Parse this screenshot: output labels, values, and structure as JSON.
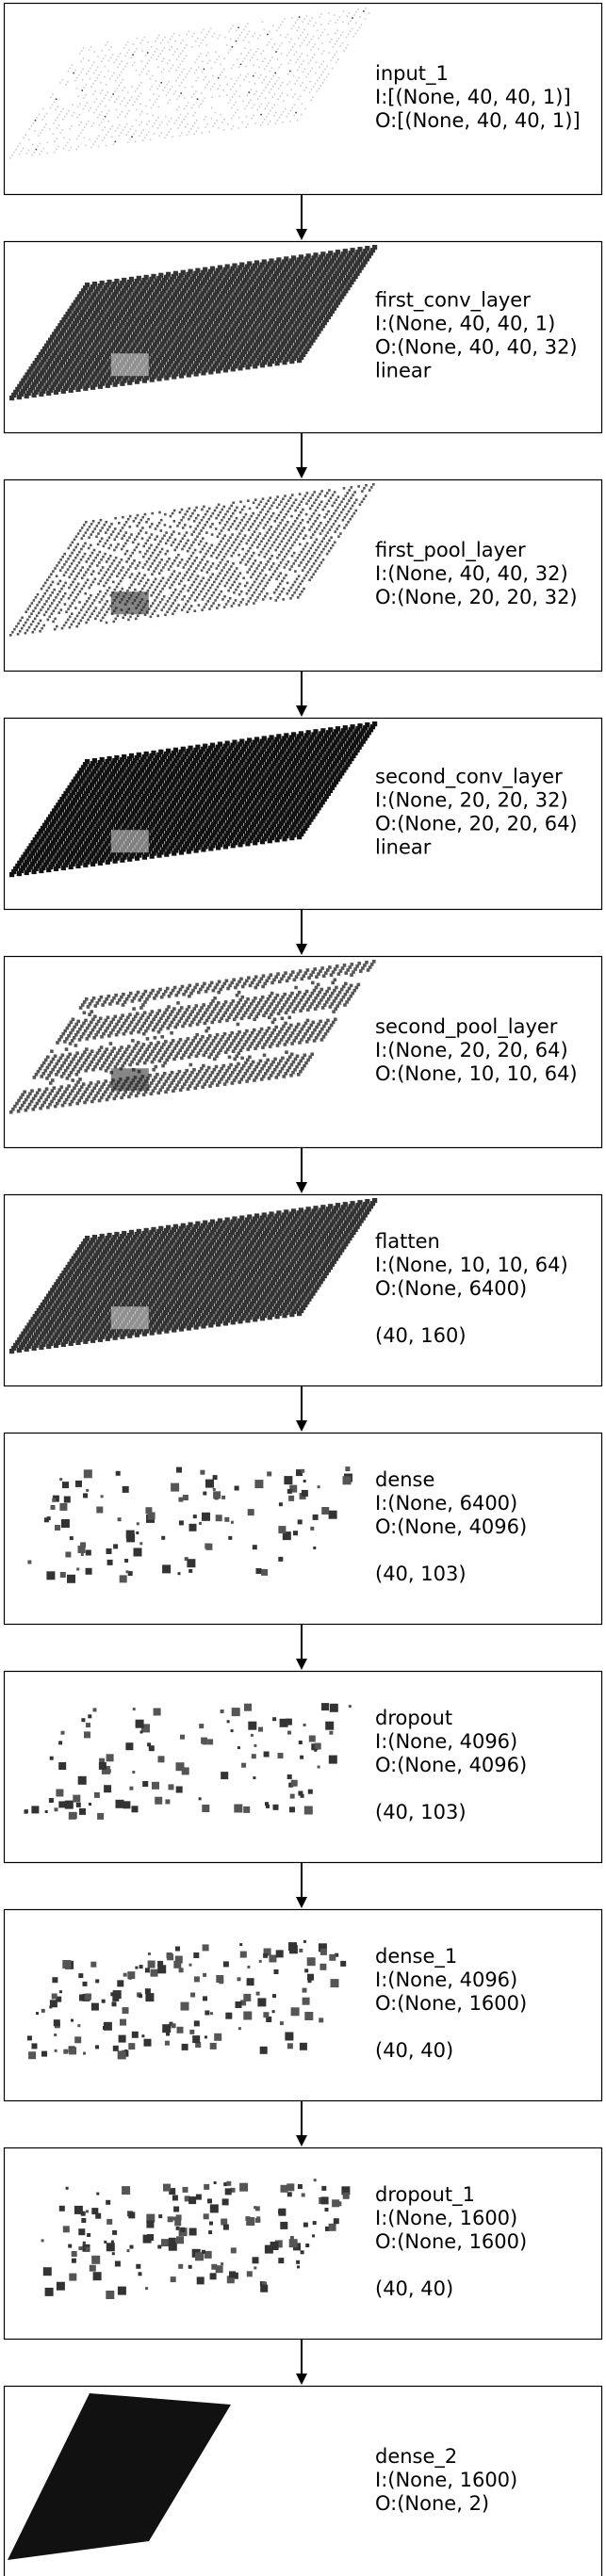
{
  "layers": [
    {
      "id": "input_1",
      "lines": [
        "input_1",
        "I:[(None, 40, 40, 1)]",
        "O:[(None, 40, 40, 1)]"
      ],
      "viz": {
        "kind": "grid",
        "n": 40,
        "style": "sparse",
        "tone": "light"
      }
    },
    {
      "id": "first_conv_layer",
      "lines": [
        "first_conv_layer",
        "I:(None, 40, 40, 1)",
        "O:(None, 40, 40, 32)",
        "linear"
      ],
      "viz": {
        "kind": "grid",
        "n": 40,
        "style": "dense",
        "tone": "dark"
      }
    },
    {
      "id": "first_pool_layer",
      "lines": [
        "first_pool_layer",
        "I:(None, 40, 40, 32)",
        "O:(None, 20, 20, 32)"
      ],
      "viz": {
        "kind": "grid",
        "n": 40,
        "style": "dots",
        "tone": "mid"
      }
    },
    {
      "id": "second_conv_layer",
      "lines": [
        "second_conv_layer",
        "I:(None, 20, 20, 32)",
        "O:(None, 20, 20, 64)",
        "linear"
      ],
      "viz": {
        "kind": "grid",
        "n": 40,
        "style": "dense",
        "tone": "black"
      }
    },
    {
      "id": "second_pool_layer",
      "lines": [
        "second_pool_layer",
        "I:(None, 20, 20, 64)",
        "O:(None, 10, 10, 64)"
      ],
      "viz": {
        "kind": "grid",
        "n": 40,
        "style": "stripes",
        "tone": "mid"
      }
    },
    {
      "id": "flatten",
      "lines": [
        "flatten",
        "I:(None, 10, 10, 64)",
        "O:(None, 6400)",
        "",
        "(40, 160)"
      ],
      "viz": {
        "kind": "grid",
        "n": 40,
        "style": "dense",
        "tone": "dark"
      }
    },
    {
      "id": "dense",
      "lines": [
        "dense",
        "I:(None, 6400)",
        "O:(None, 4096)",
        "",
        "(40, 103)"
      ],
      "viz": {
        "kind": "scatter",
        "count": 110
      }
    },
    {
      "id": "dropout",
      "lines": [
        "dropout",
        "I:(None, 4096)",
        "O:(None, 4096)",
        "",
        "(40, 103)"
      ],
      "viz": {
        "kind": "scatter",
        "count": 110
      }
    },
    {
      "id": "dense_1",
      "lines": [
        "dense_1",
        "I:(None, 4096)",
        "O:(None, 1600)",
        "",
        "(40, 40)"
      ],
      "viz": {
        "kind": "scatter",
        "count": 150
      }
    },
    {
      "id": "dropout_1",
      "lines": [
        "dropout_1",
        "I:(None, 1600)",
        "O:(None, 1600)",
        "",
        "(40, 40)"
      ],
      "viz": {
        "kind": "scatter",
        "count": 150
      }
    },
    {
      "id": "dense_2",
      "lines": [
        "dense_2",
        "I:(None, 1600)",
        "O:(None, 2)"
      ],
      "viz": {
        "kind": "solid",
        "tone": "black"
      }
    }
  ],
  "colors": {
    "box_border": "#000000",
    "arrow": "#000000",
    "text": "#000000",
    "dark": "#333333",
    "mid": "#555555",
    "light": "#aaaaaa"
  }
}
